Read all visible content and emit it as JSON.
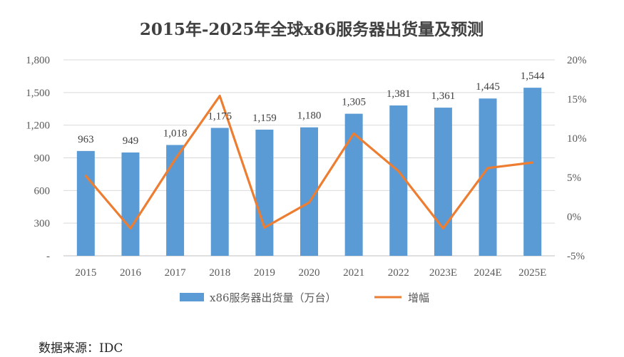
{
  "chart_data": {
    "type": "bar",
    "title": "2015年-2025年全球x86服务器出货量及预测",
    "categories": [
      "2015",
      "2016",
      "2017",
      "2018",
      "2019",
      "2020",
      "2021",
      "2022",
      "2023E",
      "2024E",
      "2025E"
    ],
    "series": [
      {
        "name": "x86服务器出货量（万台）",
        "type": "bar",
        "axis": "left",
        "color": "#5B9BD5",
        "values": [
          963,
          949,
          1018,
          1175,
          1159,
          1180,
          1305,
          1381,
          1361,
          1445,
          1544
        ],
        "labels": [
          "963",
          "949",
          "1,018",
          "1,175",
          "1,159",
          "1,180",
          "1,305",
          "1,381",
          "1,361",
          "1,445",
          "1,544"
        ]
      },
      {
        "name": "增幅",
        "type": "line",
        "axis": "right",
        "color": "#ED7D31",
        "values": [
          5.2,
          -1.5,
          7.3,
          15.4,
          -1.4,
          1.8,
          10.6,
          5.8,
          -1.5,
          6.2,
          6.9
        ]
      }
    ],
    "y_left": {
      "range": [
        0,
        1800
      ],
      "ticks": [
        0,
        300,
        600,
        900,
        1200,
        1500,
        1800
      ],
      "tick_labels": [
        "-",
        "300",
        "600",
        "900",
        "1,200",
        "1,500",
        "1,800"
      ]
    },
    "y_right": {
      "range": [
        -5,
        20
      ],
      "ticks": [
        -5,
        0,
        5,
        10,
        15,
        20
      ],
      "tick_labels": [
        "-5%",
        "0%",
        "5%",
        "10%",
        "15%",
        "20%"
      ]
    },
    "grid": true,
    "legend": "bottom"
  },
  "source": "数据来源：IDC"
}
